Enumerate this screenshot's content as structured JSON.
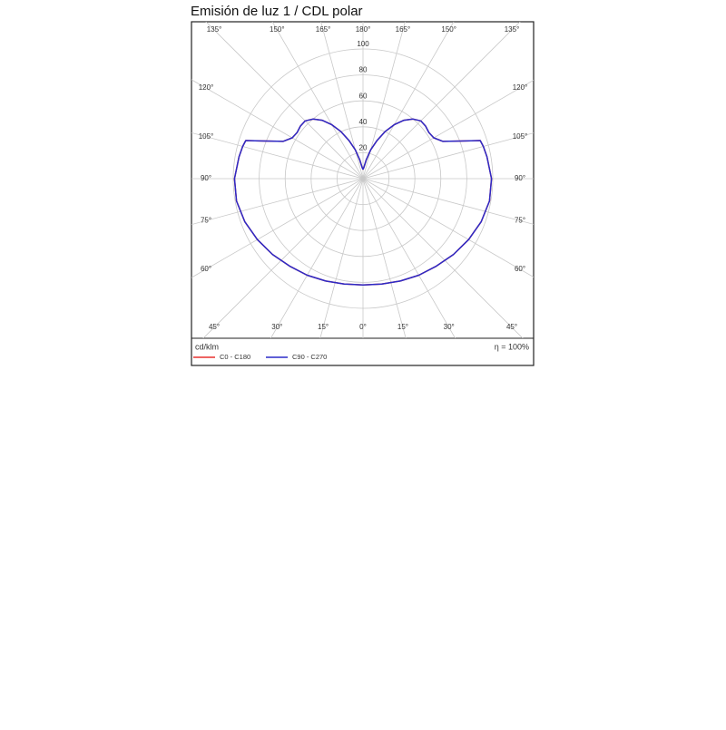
{
  "chart_data": {
    "type": "polar",
    "title": "Emisión de luz 1 / CDL polar",
    "unit_label": "cd/klm",
    "efficiency_label": "η = 100%",
    "angles": [
      0,
      10,
      20,
      30,
      40,
      50,
      60,
      70,
      80,
      90,
      100,
      105,
      108,
      110,
      115,
      120,
      125,
      130,
      135,
      140,
      145,
      150,
      155,
      160,
      165,
      170,
      175,
      180
    ],
    "series": [
      {
        "name": "C0 - C180",
        "color": "#e8312f",
        "values": [
          82,
          82.5,
          84,
          86,
          88,
          91,
          94,
          97,
          99,
          99,
          97,
          96,
          95,
          85,
          68,
          63,
          62,
          63,
          63,
          60,
          55,
          48,
          40,
          31,
          23,
          15,
          9,
          7
        ]
      },
      {
        "name": "C90 - C270",
        "color": "#2b2bc8",
        "values": [
          82,
          82.5,
          84,
          86,
          88,
          91,
          94,
          97,
          99,
          99,
          97,
          96,
          95,
          85,
          68,
          63,
          62,
          63,
          63,
          60,
          55,
          48,
          40,
          31,
          23,
          15,
          9,
          7
        ]
      }
    ],
    "ylim": [
      0,
      100
    ],
    "yticks": [
      20,
      40,
      60,
      80,
      100
    ],
    "angle_ticks": [
      {
        "value": 0,
        "label": "0°"
      },
      {
        "value": 15,
        "label": "15°"
      },
      {
        "value": 30,
        "label": "30°"
      },
      {
        "value": 45,
        "label": "45°"
      },
      {
        "value": 60,
        "label": "60°"
      },
      {
        "value": 75,
        "label": "75°"
      },
      {
        "value": 90,
        "label": "90°"
      },
      {
        "value": 105,
        "label": "105°"
      },
      {
        "value": 120,
        "label": "120°"
      },
      {
        "value": 135,
        "label": "135°"
      },
      {
        "value": 150,
        "label": "150°"
      },
      {
        "value": 165,
        "label": "165°"
      },
      {
        "value": 180,
        "label": "180°"
      }
    ],
    "grid": true
  }
}
